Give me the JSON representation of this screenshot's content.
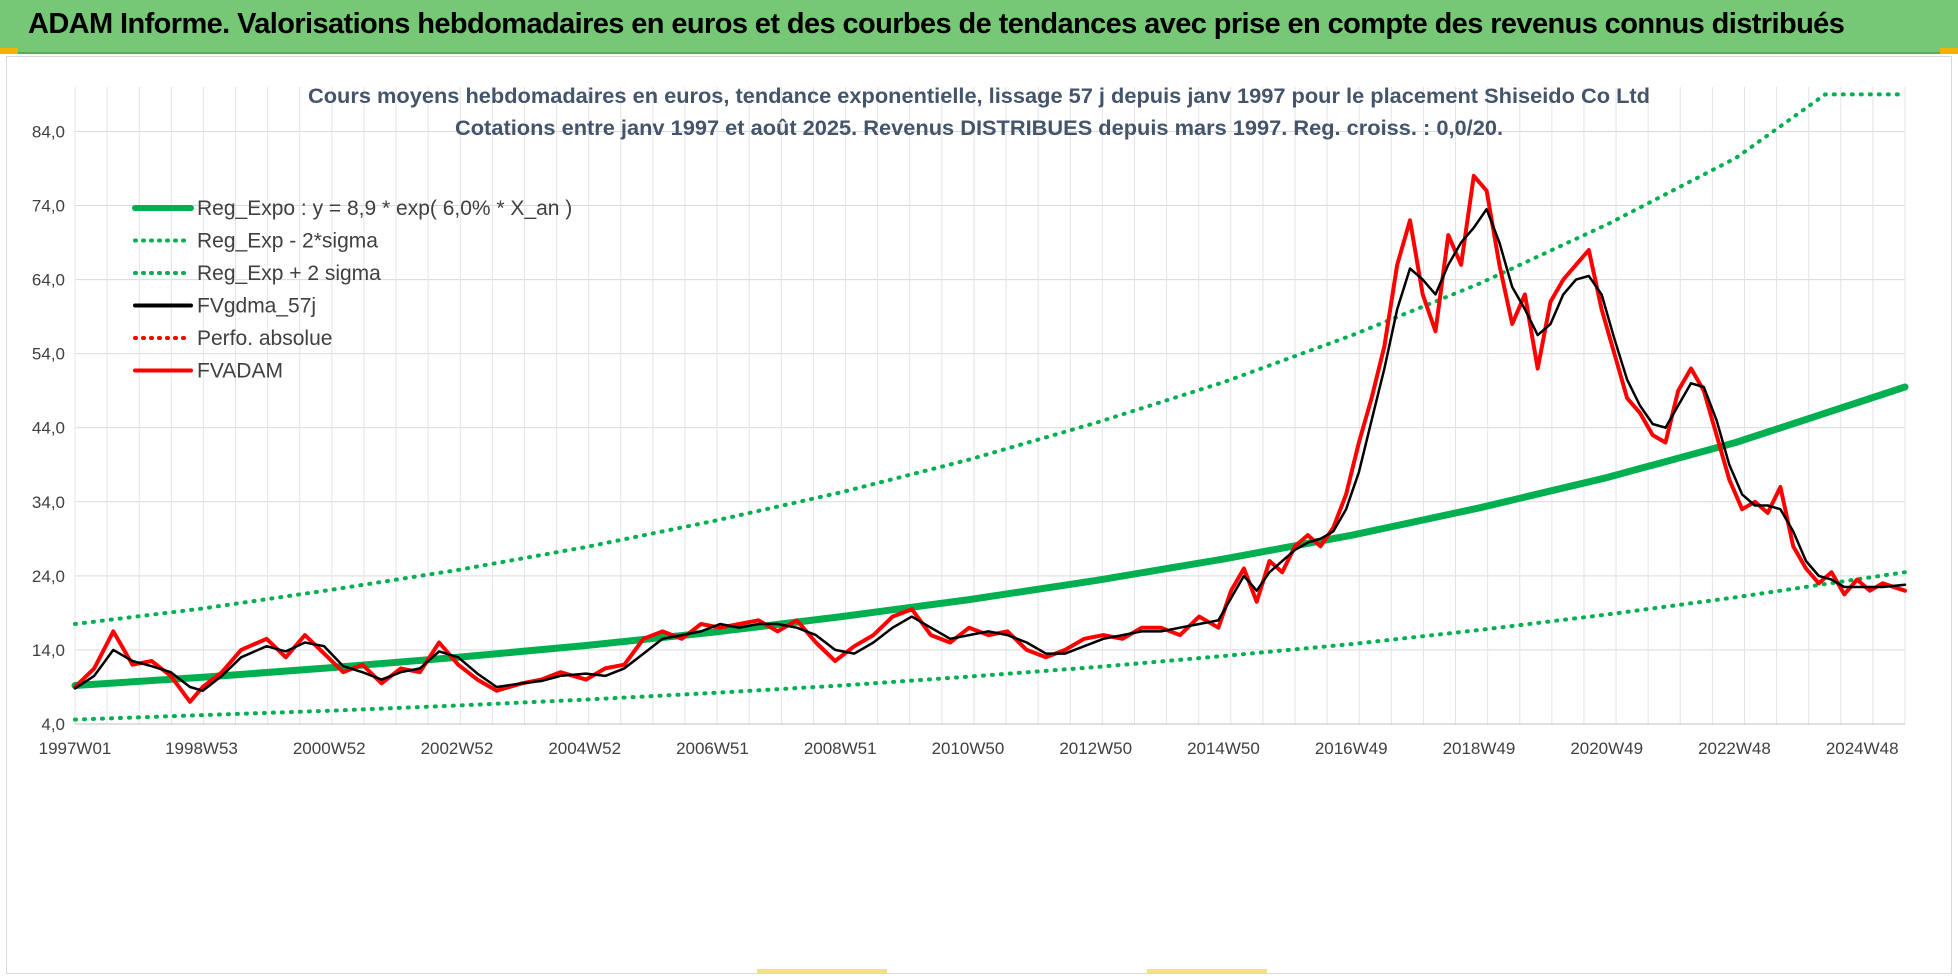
{
  "banner": {
    "title": "ADAM Informe. Valorisations hebdomadaires en euros et des courbes de tendances avec prise en compte des revenus connus distribués",
    "color": "#76c776"
  },
  "chart_data": {
    "type": "line",
    "title": "Cours moyens hebdomadaires en euros, tendance exponentielle, lissage 57 j depuis janv 1997  pour le placement Shiseido Co Ltd",
    "subtitle": "Cotations entre janv 1997 et août 2025.  Revenus DISTRIBUES depuis mars 1997. Reg. croiss. : 0,0/20.",
    "xlabel": "",
    "ylabel": "",
    "x_ticks": [
      "1997W01",
      "1998W53",
      "2000W52",
      "2002W52",
      "2004W52",
      "2006W51",
      "2008W51",
      "2010W50",
      "2012W50",
      "2014W50",
      "2016W49",
      "2018W49",
      "2020W49",
      "2022W48",
      "2024W48"
    ],
    "y_ticks": [
      "4,0",
      "14,0",
      "24,0",
      "34,0",
      "44,0",
      "54,0",
      "64,0",
      "74,0",
      "84,0"
    ],
    "xlim": [
      1997.0,
      2025.65
    ],
    "ylim": [
      4,
      90
    ],
    "grid": true,
    "legend_position": "top-left",
    "series": [
      {
        "name": "Reg_Expo : y = 8,9 * exp( 6,0% *  X_an )",
        "color": "#00b050",
        "style": "solid-thick",
        "x": [
          1997.0,
          1999.0,
          2001.0,
          2003.0,
          2005.0,
          2007.0,
          2009.0,
          2011.0,
          2013.0,
          2015.0,
          2017.0,
          2019.0,
          2021.0,
          2023.0,
          2025.65
        ],
        "y": [
          9.2,
          10.3,
          11.6,
          13.0,
          14.6,
          16.4,
          18.5,
          20.8,
          23.4,
          26.3,
          29.5,
          33.2,
          37.3,
          42.0,
          49.5
        ]
      },
      {
        "name": "Reg_Exp - 2*sigma",
        "color": "#00b050",
        "style": "dotted",
        "x": [
          1997.0,
          1999.0,
          2001.0,
          2003.0,
          2005.0,
          2007.0,
          2009.0,
          2011.0,
          2013.0,
          2015.0,
          2017.0,
          2019.0,
          2021.0,
          2023.0,
          2025.65
        ],
        "y": [
          4.6,
          5.2,
          5.8,
          6.5,
          7.3,
          8.2,
          9.2,
          10.4,
          11.7,
          13.2,
          14.8,
          16.7,
          18.8,
          21.1,
          24.5
        ]
      },
      {
        "name": "Reg_Exp + 2 sigma",
        "color": "#00b050",
        "style": "dotted",
        "x": [
          1997.0,
          1999.0,
          2001.0,
          2003.0,
          2005.0,
          2007.0,
          2009.0,
          2011.0,
          2013.0,
          2015.0,
          2017.0,
          2019.0,
          2021.0,
          2023.0,
          2024.4,
          2025.65
        ],
        "y": [
          17.5,
          19.6,
          22.1,
          24.8,
          27.9,
          31.4,
          35.3,
          39.7,
          44.7,
          50.2,
          56.5,
          63.5,
          71.5,
          80.4,
          89.0,
          89.0
        ]
      },
      {
        "name": "FVgdma_57j",
        "color": "#000000",
        "style": "solid",
        "x": [
          1997.0,
          1997.3,
          1997.6,
          1997.9,
          1998.2,
          1998.5,
          1998.8,
          1999.0,
          1999.3,
          1999.6,
          2000.0,
          2000.3,
          2000.6,
          2000.9,
          2001.2,
          2001.5,
          2001.8,
          2002.1,
          2002.4,
          2002.7,
          2003.0,
          2003.3,
          2003.6,
          2004.0,
          2004.3,
          2004.6,
          2005.0,
          2005.3,
          2005.6,
          2005.9,
          2006.2,
          2006.5,
          2006.8,
          2007.1,
          2007.4,
          2007.7,
          2008.0,
          2008.3,
          2008.6,
          2008.9,
          2009.2,
          2009.5,
          2009.8,
          2010.1,
          2010.4,
          2010.7,
          2011.0,
          2011.3,
          2011.6,
          2011.9,
          2012.2,
          2012.5,
          2012.8,
          2013.1,
          2013.4,
          2013.7,
          2014.0,
          2014.3,
          2014.6,
          2014.9,
          2015.1,
          2015.3,
          2015.5,
          2015.7,
          2015.9,
          2016.1,
          2016.3,
          2016.5,
          2016.7,
          2016.9,
          2017.1,
          2017.3,
          2017.5,
          2017.7,
          2017.9,
          2018.1,
          2018.3,
          2018.5,
          2018.7,
          2018.9,
          2019.1,
          2019.3,
          2019.5,
          2019.7,
          2019.9,
          2020.1,
          2020.3,
          2020.5,
          2020.7,
          2020.9,
          2021.1,
          2021.3,
          2021.5,
          2021.7,
          2021.9,
          2022.1,
          2022.3,
          2022.5,
          2022.7,
          2022.9,
          2023.1,
          2023.3,
          2023.5,
          2023.7,
          2023.9,
          2024.1,
          2024.3,
          2024.5,
          2024.7,
          2024.9,
          2025.1,
          2025.3,
          2025.65
        ],
        "y": [
          8.8,
          10.5,
          14.0,
          12.5,
          11.8,
          11.0,
          9.0,
          8.5,
          10.5,
          13.0,
          14.5,
          13.8,
          15.0,
          14.5,
          11.8,
          11.0,
          10.0,
          11.0,
          11.5,
          13.8,
          13.0,
          10.8,
          9.0,
          9.5,
          9.8,
          10.5,
          10.8,
          10.5,
          11.5,
          13.5,
          15.5,
          16.0,
          16.5,
          17.5,
          17.0,
          17.5,
          17.5,
          17.0,
          16.0,
          14.0,
          13.5,
          15.0,
          17.0,
          18.5,
          17.0,
          15.5,
          16.0,
          16.5,
          16.0,
          15.0,
          13.5,
          13.5,
          14.5,
          15.5,
          16.0,
          16.5,
          16.5,
          17.0,
          17.5,
          18.0,
          21.0,
          24.0,
          22.0,
          24.5,
          26.0,
          27.5,
          28.5,
          29.0,
          30.0,
          33.0,
          38.0,
          45.0,
          52.0,
          60.0,
          65.5,
          64.0,
          62.0,
          66.0,
          69.0,
          71.0,
          73.5,
          69.0,
          63.0,
          60.0,
          56.5,
          58.0,
          62.0,
          64.0,
          64.5,
          62.0,
          56.0,
          50.5,
          47.0,
          44.5,
          44.0,
          47.0,
          50.0,
          49.5,
          45.0,
          39.0,
          35.0,
          33.5,
          33.5,
          33.0,
          30.0,
          26.0,
          24.0,
          23.5,
          22.5,
          22.5,
          22.5,
          22.5,
          22.8
        ]
      },
      {
        "name": "Perfo. absolue",
        "color": "#ff0000",
        "style": "dotted",
        "x": [
          1997.0,
          1997.3,
          1997.6,
          1997.9,
          1998.2,
          1998.5,
          1998.8,
          1999.0,
          1999.3,
          1999.6,
          2000.0,
          2000.3,
          2000.6,
          2000.9,
          2001.2,
          2001.5,
          2001.8,
          2002.1,
          2002.4,
          2002.7,
          2003.0,
          2003.3,
          2003.6,
          2004.0,
          2004.3,
          2004.6,
          2005.0,
          2005.3,
          2005.6,
          2005.9,
          2006.2,
          2006.5,
          2006.8,
          2007.1,
          2007.4,
          2007.7,
          2008.0,
          2008.3,
          2008.6,
          2008.9,
          2009.2,
          2009.5,
          2009.8,
          2010.1,
          2010.4,
          2010.7,
          2011.0,
          2011.3,
          2011.6,
          2011.9,
          2012.2,
          2012.5,
          2012.8,
          2013.1,
          2013.4,
          2013.7,
          2014.0,
          2014.3,
          2014.6,
          2014.9,
          2015.1,
          2015.3,
          2015.5,
          2015.7,
          2015.9,
          2016.1,
          2016.3,
          2016.5,
          2016.7,
          2016.9,
          2017.1,
          2017.3,
          2017.5,
          2017.7,
          2017.9,
          2018.1,
          2018.3,
          2018.5,
          2018.7,
          2018.9,
          2019.1,
          2019.3,
          2019.5,
          2019.7,
          2019.9,
          2020.1,
          2020.3,
          2020.5,
          2020.7,
          2020.9,
          2021.1,
          2021.3,
          2021.5,
          2021.7,
          2021.9,
          2022.1,
          2022.3,
          2022.5,
          2022.7,
          2022.9,
          2023.1,
          2023.3,
          2023.5,
          2023.7,
          2023.9,
          2024.1,
          2024.3,
          2024.5,
          2024.7,
          2024.9,
          2025.1,
          2025.3,
          2025.65
        ],
        "y": [
          9.0,
          11.5,
          16.5,
          12.0,
          12.5,
          10.5,
          7.0,
          9.0,
          11.0,
          14.0,
          15.5,
          13.0,
          16.0,
          13.5,
          11.0,
          12.0,
          9.5,
          11.5,
          11.0,
          15.0,
          12.0,
          10.0,
          8.5,
          9.5,
          10.0,
          11.0,
          10.0,
          11.5,
          12.0,
          15.5,
          16.5,
          15.5,
          17.5,
          17.0,
          17.5,
          18.0,
          16.5,
          18.0,
          15.0,
          12.5,
          14.5,
          16.0,
          18.5,
          19.5,
          16.0,
          15.0,
          17.0,
          16.0,
          16.5,
          14.0,
          13.0,
          14.0,
          15.5,
          16.0,
          15.5,
          17.0,
          17.0,
          16.0,
          18.5,
          17.0,
          22.0,
          25.0,
          20.5,
          26.0,
          24.5,
          28.0,
          29.5,
          28.0,
          30.5,
          35.0,
          42.0,
          48.0,
          55.0,
          66.0,
          72.0,
          62.0,
          57.0,
          70.0,
          66.0,
          78.0,
          76.0,
          66.0,
          58.0,
          62.0,
          52.0,
          61.0,
          64.0,
          66.0,
          68.0,
          60.0,
          54.0,
          48.0,
          46.0,
          43.0,
          42.0,
          49.0,
          52.0,
          49.0,
          43.0,
          37.0,
          33.0,
          34.0,
          32.5,
          36.0,
          28.0,
          25.0,
          23.0,
          24.5,
          21.5,
          23.5,
          22.0,
          23.0,
          22.0
        ]
      },
      {
        "name": "FVADAM",
        "color": "#ff0000",
        "style": "solid-thick",
        "x": [
          1997.0,
          1997.3,
          1997.6,
          1997.9,
          1998.2,
          1998.5,
          1998.8,
          1999.0,
          1999.3,
          1999.6,
          2000.0,
          2000.3,
          2000.6,
          2000.9,
          2001.2,
          2001.5,
          2001.8,
          2002.1,
          2002.4,
          2002.7,
          2003.0,
          2003.3,
          2003.6,
          2004.0,
          2004.3,
          2004.6,
          2005.0,
          2005.3,
          2005.6,
          2005.9,
          2006.2,
          2006.5,
          2006.8,
          2007.1,
          2007.4,
          2007.7,
          2008.0,
          2008.3,
          2008.6,
          2008.9,
          2009.2,
          2009.5,
          2009.8,
          2010.1,
          2010.4,
          2010.7,
          2011.0,
          2011.3,
          2011.6,
          2011.9,
          2012.2,
          2012.5,
          2012.8,
          2013.1,
          2013.4,
          2013.7,
          2014.0,
          2014.3,
          2014.6,
          2014.9,
          2015.1,
          2015.3,
          2015.5,
          2015.7,
          2015.9,
          2016.1,
          2016.3,
          2016.5,
          2016.7,
          2016.9,
          2017.1,
          2017.3,
          2017.5,
          2017.7,
          2017.9,
          2018.1,
          2018.3,
          2018.5,
          2018.7,
          2018.9,
          2019.1,
          2019.3,
          2019.5,
          2019.7,
          2019.9,
          2020.1,
          2020.3,
          2020.5,
          2020.7,
          2020.9,
          2021.1,
          2021.3,
          2021.5,
          2021.7,
          2021.9,
          2022.1,
          2022.3,
          2022.5,
          2022.7,
          2022.9,
          2023.1,
          2023.3,
          2023.5,
          2023.7,
          2023.9,
          2024.1,
          2024.3,
          2024.5,
          2024.7,
          2024.9,
          2025.1,
          2025.3,
          2025.65
        ],
        "y": [
          9.0,
          11.5,
          16.5,
          12.0,
          12.5,
          10.5,
          7.0,
          9.0,
          11.0,
          14.0,
          15.5,
          13.0,
          16.0,
          13.5,
          11.0,
          12.0,
          9.5,
          11.5,
          11.0,
          15.0,
          12.0,
          10.0,
          8.5,
          9.5,
          10.0,
          11.0,
          10.0,
          11.5,
          12.0,
          15.5,
          16.5,
          15.5,
          17.5,
          17.0,
          17.5,
          18.0,
          16.5,
          18.0,
          15.0,
          12.5,
          14.5,
          16.0,
          18.5,
          19.5,
          16.0,
          15.0,
          17.0,
          16.0,
          16.5,
          14.0,
          13.0,
          14.0,
          15.5,
          16.0,
          15.5,
          17.0,
          17.0,
          16.0,
          18.5,
          17.0,
          22.0,
          25.0,
          20.5,
          26.0,
          24.5,
          28.0,
          29.5,
          28.0,
          30.5,
          35.0,
          42.0,
          48.0,
          55.0,
          66.0,
          72.0,
          62.0,
          57.0,
          70.0,
          66.0,
          78.0,
          76.0,
          66.0,
          58.0,
          62.0,
          52.0,
          61.0,
          64.0,
          66.0,
          68.0,
          60.0,
          54.0,
          48.0,
          46.0,
          43.0,
          42.0,
          49.0,
          52.0,
          49.0,
          43.0,
          37.0,
          33.0,
          34.0,
          32.5,
          36.0,
          28.0,
          25.0,
          23.0,
          24.5,
          21.5,
          23.5,
          22.0,
          23.0,
          22.0
        ]
      }
    ]
  }
}
